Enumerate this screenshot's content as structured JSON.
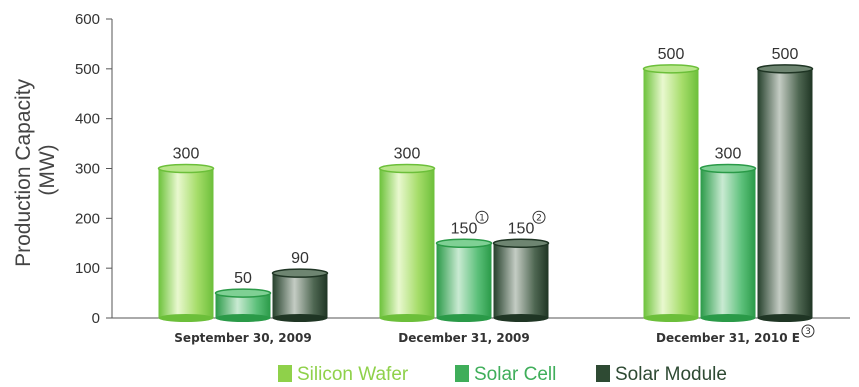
{
  "chart_data": {
    "type": "bar",
    "ylabel": "Production Capacity (MW)",
    "ylabel_lines": [
      "Production Capacity",
      "(MW)"
    ],
    "ylim": [
      0,
      600
    ],
    "yticks": [
      "0",
      "100",
      "200",
      "300",
      "400",
      "500",
      "600"
    ],
    "categories": [
      "September 30, 2009",
      "December 31, 2009",
      "December 31, 2010 E"
    ],
    "series": [
      {
        "name": "Silicon Wafer",
        "values": [
          300,
          300,
          500
        ],
        "labels": [
          "300",
          "300",
          "500"
        ],
        "notes": [
          "",
          "",
          ""
        ]
      },
      {
        "name": "Solar Cell",
        "values": [
          50,
          150,
          300
        ],
        "labels": [
          "50",
          "150",
          "300"
        ],
        "notes": [
          "",
          "1",
          ""
        ]
      },
      {
        "name": "Solar Module",
        "values": [
          90,
          150,
          500
        ],
        "labels": [
          "90",
          "150",
          "500"
        ],
        "notes": [
          "",
          "2",
          ""
        ]
      }
    ],
    "category_notes": [
      "",
      "",
      "3"
    ],
    "grid": false,
    "legend_position": "bottom",
    "colors": {
      "Silicon Wafer": "#8fd14a",
      "Solar Cell": "#3fae5a",
      "Solar Module": "#2e4a33"
    }
  }
}
